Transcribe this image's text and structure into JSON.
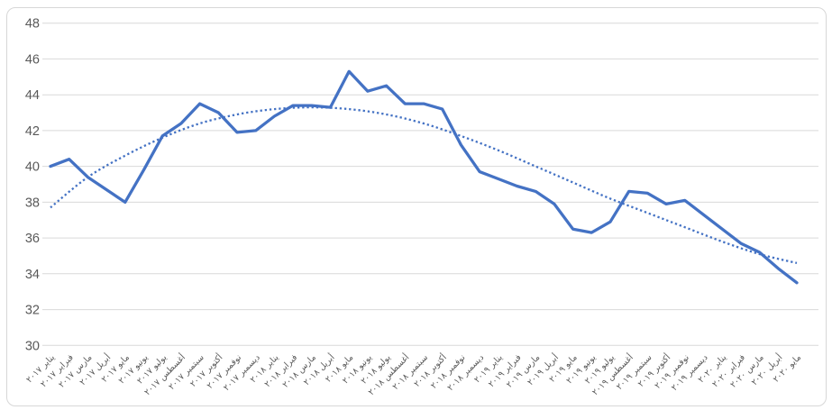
{
  "chart_data": {
    "type": "line",
    "title": "",
    "x_labels": [
      "يناير ٢٠١٧",
      "فبراير ٢٠١٧",
      "مارس ٢٠١٧",
      "أبريل ٢٠١٧",
      "مايو ٢٠١٧",
      "يونيو ٢٠١٧",
      "يوليو ٢٠١٧",
      "أغسطس ٢٠١٧",
      "سبتمبر ٢٠١٧",
      "أكتوبر ٢٠١٧",
      "نوفمبر ٢٠١٧",
      "ديسمبر ٢٠١٧",
      "يناير ٢٠١٨",
      "فبراير ٢٠١٨",
      "مارس ٢٠١٨",
      "أبريل ٢٠١٨",
      "مايو ٢٠١٨",
      "يونيو ٢٠١٨",
      "يوليو ٢٠١٨",
      "أغسطس ٢٠١٨",
      "سبتمبر ٢٠١٨",
      "أكتوبر ٢٠١٨",
      "نوفمبر ٢٠١٨",
      "ديسمبر ٢٠١٨",
      "يناير ٢٠١٩",
      "فبراير ٢٠١٩",
      "مارس ٢٠١٩",
      "أبريل ٢٠١٩",
      "مايو ٢٠١٩",
      "يونيو ٢٠١٩",
      "يوليو ٢٠١٩",
      "أغسطس ٢٠١٩",
      "سبتمبر ٢٠١٩",
      "أكتوبر ٢٠١٩",
      "نوفمبر ٢٠١٩",
      "ديسمبر ٢٠١٩",
      "يناير ٢٠٢٠",
      "فبراير ٢٠٢٠",
      "مارس ٢٠٢٠",
      "أبريل ٢٠٢٠",
      "مايو ٢٠٢٠"
    ],
    "series": [
      {
        "name": "main-line",
        "style": "solid",
        "color": "#4472C4",
        "values": [
          40.0,
          40.4,
          39.4,
          38.7,
          38.0,
          39.8,
          41.7,
          42.4,
          43.5,
          43.0,
          41.9,
          42.0,
          42.8,
          43.4,
          43.4,
          43.3,
          45.3,
          44.2,
          44.5,
          43.5,
          43.5,
          43.2,
          41.2,
          39.7,
          39.3,
          38.9,
          38.6,
          37.9,
          36.5,
          36.3,
          36.9,
          38.6,
          38.5,
          37.9,
          38.1,
          37.3,
          36.5,
          35.7,
          35.2,
          34.3,
          33.5
        ]
      },
      {
        "name": "trendline",
        "style": "dotted",
        "color": "#4472C4",
        "sample_every_n_months": 2,
        "values": [
          37.7,
          39.4,
          40.6,
          41.6,
          42.4,
          42.9,
          43.2,
          43.3,
          43.2,
          42.9,
          42.4,
          41.7,
          40.9,
          40.0,
          39.1,
          38.2,
          37.4,
          36.6,
          35.8,
          35.1,
          34.6
        ]
      }
    ],
    "yticks": [
      30,
      32,
      34,
      36,
      38,
      40,
      42,
      44,
      46,
      48
    ],
    "ylim": [
      30,
      48
    ],
    "xlabel": "",
    "ylabel": "",
    "grid": true,
    "legend": "none",
    "colors": {
      "gridline": "#D9D9D9",
      "axis_label": "#595959",
      "frame_border": "#D7D7D7",
      "background": "#FFFFFF"
    }
  }
}
